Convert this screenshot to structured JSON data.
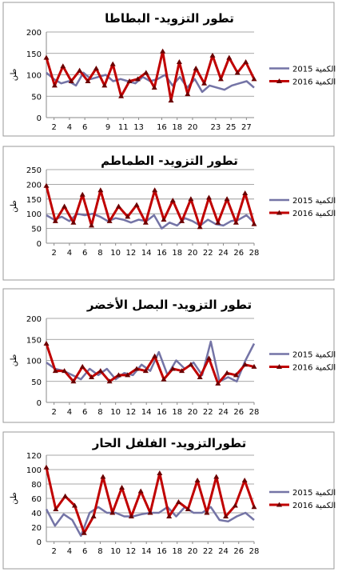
{
  "chart_data": [
    {
      "type": "line",
      "title": "تطور التزويد- البطاطا",
      "ylabel": "طن",
      "ylim": [
        0,
        200
      ],
      "yticks": [
        0,
        50,
        100,
        150,
        200
      ],
      "xticks": [
        2,
        4,
        6,
        9,
        11,
        13,
        16,
        18,
        20,
        23,
        25,
        27
      ],
      "grid": true,
      "legend": "right",
      "series": [
        {
          "name": "الكمية 2015",
          "color": "#7474a6",
          "values": [
            105,
            90,
            80,
            85,
            75,
            105,
            90,
            95,
            100,
            85,
            90,
            85,
            80,
            95,
            85,
            90,
            100,
            75,
            95,
            70,
            90,
            60,
            75,
            70,
            65,
            75,
            80,
            85,
            70
          ]
        },
        {
          "name": "الكمية 2016",
          "color": "#c00000",
          "marker": "triangle",
          "values": [
            140,
            75,
            120,
            85,
            110,
            85,
            115,
            75,
            125,
            50,
            85,
            90,
            105,
            70,
            155,
            40,
            130,
            55,
            115,
            80,
            145,
            90,
            140,
            105,
            130,
            90
          ]
        }
      ]
    },
    {
      "type": "line",
      "title": "تطور التزويد- الطماطم",
      "ylabel": "طن",
      "ylim": [
        0,
        250
      ],
      "yticks": [
        0,
        50,
        100,
        150,
        200,
        250
      ],
      "xticks": [
        2,
        4,
        6,
        8,
        10,
        12,
        14,
        16,
        18,
        20,
        22,
        24,
        26,
        28
      ],
      "grid": true,
      "legend": "right",
      "series": [
        {
          "name": "الكمية 2015",
          "color": "#7474a6",
          "values": [
            95,
            80,
            90,
            75,
            100,
            95,
            100,
            90,
            75,
            85,
            80,
            70,
            80,
            75,
            95,
            50,
            70,
            60,
            85,
            75,
            60,
            80,
            65,
            60,
            75,
            80,
            95,
            70
          ]
        },
        {
          "name": "الكمية 2016",
          "color": "#c00000",
          "marker": "triangle",
          "values": [
            195,
            75,
            125,
            70,
            165,
            60,
            180,
            75,
            125,
            90,
            130,
            70,
            180,
            80,
            145,
            75,
            150,
            55,
            155,
            70,
            150,
            70,
            170,
            65
          ]
        }
      ]
    },
    {
      "type": "line",
      "title": "تطور التزويد- البصل الأخضر",
      "ylabel": "طن",
      "ylim": [
        0,
        200
      ],
      "yticks": [
        0,
        50,
        100,
        150,
        200
      ],
      "xticks": [
        2,
        4,
        6,
        8,
        10,
        12,
        14,
        16,
        18,
        20,
        22,
        24,
        26,
        28
      ],
      "grid": true,
      "legend": "right",
      "series": [
        {
          "name": "الكمية 2015",
          "color": "#7474a6",
          "values": [
            95,
            80,
            75,
            65,
            55,
            80,
            65,
            80,
            55,
            70,
            65,
            90,
            75,
            120,
            65,
            100,
            80,
            95,
            65,
            145,
            50,
            60,
            50,
            100,
            140
          ]
        },
        {
          "name": "الكمية 2016",
          "color": "#c00000",
          "marker": "triangle",
          "values": [
            140,
            75,
            75,
            50,
            85,
            60,
            75,
            50,
            65,
            65,
            80,
            75,
            110,
            55,
            80,
            75,
            90,
            60,
            105,
            45,
            70,
            65,
            90,
            85
          ]
        }
      ]
    },
    {
      "type": "line",
      "title": "تطورالتزويد- الفلفل الحار",
      "ylabel": "طن",
      "ylim": [
        0,
        120
      ],
      "yticks": [
        0,
        20,
        40,
        60,
        80,
        100,
        120
      ],
      "xticks": [
        2,
        4,
        6,
        8,
        10,
        12,
        14,
        16,
        18,
        20,
        22,
        24,
        26,
        28
      ],
      "grid": true,
      "legend": "right",
      "series": [
        {
          "name": "الكمية 2015",
          "color": "#7474a6",
          "values": [
            45,
            22,
            38,
            30,
            8,
            40,
            48,
            40,
            40,
            35,
            35,
            38,
            40,
            40,
            48,
            35,
            48,
            40,
            40,
            48,
            30,
            28,
            35,
            40,
            30
          ]
        },
        {
          "name": "الكمية 2016",
          "color": "#c00000",
          "marker": "triangle",
          "values": [
            103,
            45,
            63,
            50,
            12,
            35,
            90,
            40,
            75,
            35,
            70,
            40,
            95,
            35,
            55,
            45,
            85,
            40,
            90,
            35,
            50,
            85,
            48
          ]
        }
      ]
    }
  ]
}
